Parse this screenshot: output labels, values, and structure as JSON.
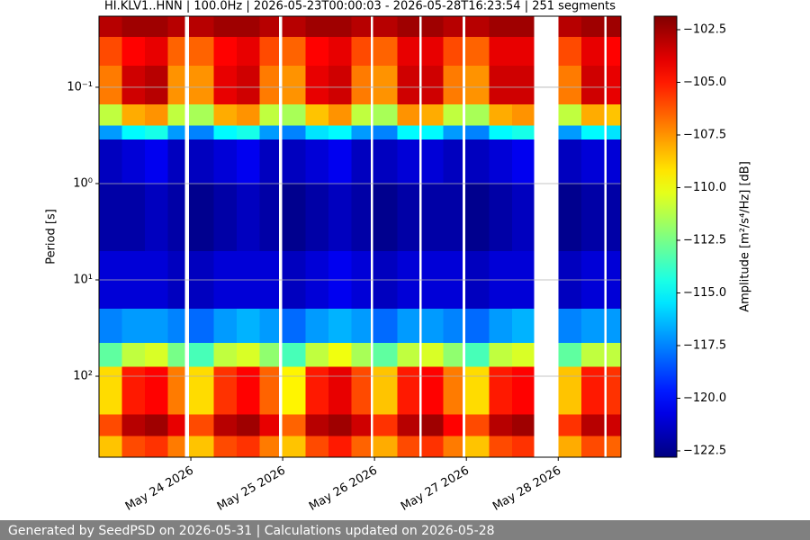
{
  "chart_data": {
    "type": "heatmap",
    "title": "HI.KLV1..HNN | 100.0Hz | 2026-05-23T00:00:03 - 2026-05-28T16:23:54 | 251 segments",
    "ylabel": "Period [s]",
    "colorbar_label": "Amplitude [m²/s⁴/Hz] [dB]",
    "footer": "Generated by SeedPSD on 2026-05-31 | Calculations updated on 2026-05-28",
    "colormap": "jet",
    "ylog": true,
    "yinverted": true,
    "grid": true,
    "xlim": [
      "2026-05-23T00:00",
      "2026-05-28T16:24"
    ],
    "xticks": [
      {
        "value": "2026-05-24T00:00",
        "label": "May 24 2026"
      },
      {
        "value": "2026-05-25T00:00",
        "label": "May 25 2026"
      },
      {
        "value": "2026-05-26T00:00",
        "label": "May 26 2026"
      },
      {
        "value": "2026-05-27T00:00",
        "label": "May 27 2026"
      },
      {
        "value": "2026-05-28T00:00",
        "label": "May 28 2026"
      }
    ],
    "ylim": [
      0.0183,
      693
    ],
    "yticks": [
      {
        "value": 0.1,
        "label": "10⁻¹"
      },
      {
        "value": 1,
        "label": "10⁰"
      },
      {
        "value": 10,
        "label": "10¹"
      },
      {
        "value": 100,
        "label": "10²"
      }
    ],
    "clim": [
      -122.8,
      -101.86
    ],
    "cticks": [
      {
        "value": -102.5,
        "label": "−102.5"
      },
      {
        "value": -105,
        "label": "−105.0"
      },
      {
        "value": -107.5,
        "label": "−107.5"
      },
      {
        "value": -110,
        "label": "−110.0"
      },
      {
        "value": -112.5,
        "label": "−112.5"
      },
      {
        "value": -115,
        "label": "−115.0"
      },
      {
        "value": -117.5,
        "label": "−117.5"
      },
      {
        "value": -120,
        "label": "−120.0"
      },
      {
        "value": -122.5,
        "label": "−122.5"
      }
    ],
    "x": [
      "2026-05-23T00:00",
      "2026-05-23T06:00",
      "2026-05-23T12:00",
      "2026-05-23T18:00",
      "2026-05-23T22:30",
      "2026-05-23T23:30",
      "2026-05-24T06:00",
      "2026-05-24T12:00",
      "2026-05-24T18:00",
      "2026-05-24T23:00",
      "2026-05-24T23:50",
      "2026-05-25T06:00",
      "2026-05-25T12:00",
      "2026-05-25T18:00",
      "2026-05-25T23:00",
      "2026-05-25T23:40",
      "2026-05-26T06:00",
      "2026-05-26T11:40",
      "2026-05-26T12:20",
      "2026-05-26T18:00",
      "2026-05-26T23:00",
      "2026-05-26T23:40",
      "2026-05-27T06:00",
      "2026-05-27T12:00",
      "2026-05-27T17:40",
      "2026-05-28T00:00",
      "2026-05-28T06:00",
      "2026-05-28T12:00",
      "2026-05-28T12:40",
      "2026-05-28T16:24"
    ],
    "y": [
      0.0183,
      0.03,
      0.06,
      0.15,
      0.25,
      0.35,
      1,
      5,
      20,
      45,
      80,
      250,
      420,
      693
    ],
    "z": [
      [
        -103,
        -106,
        -107,
        -111,
        -117,
        -121.5,
        -122,
        -121,
        -117.5,
        -113,
        -109,
        -106,
        -108.5
      ],
      [
        -102.5,
        -104.5,
        -103.5,
        -108,
        -115,
        -121,
        -122,
        -121,
        -117,
        -111,
        -105,
        -103,
        -106
      ],
      [
        -102.5,
        -104,
        -103,
        -107.5,
        -114.5,
        -120.5,
        -121.5,
        -121,
        -117,
        -110.5,
        -104.5,
        -102.5,
        -105.5
      ],
      [
        -103,
        -106.5,
        -107.5,
        -111,
        -117,
        -121.5,
        -122,
        -121.5,
        -117.5,
        -112.5,
        -107,
        -104,
        -107
      ],
      null,
      [
        -103,
        -106.5,
        -107.5,
        -111.5,
        -117.5,
        -121.5,
        -122.5,
        -121.5,
        -118,
        -113.5,
        -109,
        -106,
        -108.5
      ],
      [
        -102.5,
        -104.5,
        -104,
        -108,
        -115,
        -121,
        -122,
        -121,
        -117,
        -111,
        -105.5,
        -103,
        -106
      ],
      [
        -102.5,
        -104,
        -103.5,
        -107.5,
        -114.5,
        -120.5,
        -121.5,
        -121,
        -116.5,
        -110.5,
        -104.5,
        -102.5,
        -105.5
      ],
      [
        -103,
        -106,
        -107,
        -111,
        -117,
        -121.5,
        -122,
        -121,
        -117,
        -112,
        -106.5,
        -104,
        -107
      ],
      null,
      [
        -103,
        -106.5,
        -107.5,
        -111.5,
        -117.5,
        -121.5,
        -122.5,
        -121.5,
        -118,
        -113.5,
        -109.5,
        -106.5,
        -108.5
      ],
      [
        -102.5,
        -104.5,
        -104,
        -108.5,
        -115.5,
        -121,
        -122,
        -121,
        -117,
        -111,
        -105,
        -103,
        -106
      ],
      [
        -102.5,
        -104,
        -103.5,
        -107.5,
        -115,
        -120.5,
        -121.5,
        -120.5,
        -116.5,
        -110,
        -104,
        -102.5,
        -105
      ],
      [
        -103,
        -106,
        -107,
        -111,
        -117,
        -121.5,
        -122,
        -121,
        -117,
        -111.5,
        -106,
        -103.5,
        -106.5
      ],
      null,
      [
        -103,
        -106.5,
        -107.5,
        -111.5,
        -117.5,
        -121.5,
        -122.5,
        -121.5,
        -118,
        -113,
        -108.5,
        -105.5,
        -108
      ],
      [
        -102.5,
        -104,
        -103.5,
        -107.5,
        -115,
        -121,
        -122,
        -121,
        -117,
        -111,
        -105,
        -103,
        -106
      ],
      null,
      [
        -102.5,
        -104,
        -103.5,
        -108,
        -115,
        -121,
        -122,
        -121,
        -117,
        -110.5,
        -104.5,
        -102.5,
        -105.5
      ],
      [
        -103,
        -106,
        -107,
        -111,
        -117,
        -121.5,
        -122,
        -121,
        -117.5,
        -112,
        -107,
        -104.5,
        -107
      ],
      null,
      [
        -103,
        -106.5,
        -107.5,
        -111.5,
        -117.5,
        -121.5,
        -122.5,
        -121.5,
        -118,
        -113.5,
        -109,
        -106,
        -108.5
      ],
      [
        -102.5,
        -104,
        -103.5,
        -108,
        -115,
        -121,
        -122,
        -121,
        -117,
        -111,
        -105,
        -103,
        -106
      ],
      [
        -102.5,
        -104,
        -103.5,
        -107.5,
        -114.5,
        -120.5,
        -121.5,
        -121,
        -116.5,
        -110.5,
        -104.5,
        -102.5,
        -105.5
      ],
      null,
      [
        -103,
        -106,
        -107,
        -111,
        -117,
        -121.5,
        -122.5,
        -121.5,
        -117.5,
        -113,
        -108.5,
        -105.5,
        -108
      ],
      [
        -102.5,
        -104,
        -103.5,
        -108,
        -115,
        -121,
        -122,
        -121,
        -117,
        -111,
        -105,
        -103,
        -106
      ],
      null,
      [
        -102.5,
        -104.5,
        -104,
        -108.5,
        -115.5,
        -121,
        -122,
        -121,
        -117,
        -111,
        -105.5,
        -103.5,
        -106.5
      ]
    ]
  }
}
